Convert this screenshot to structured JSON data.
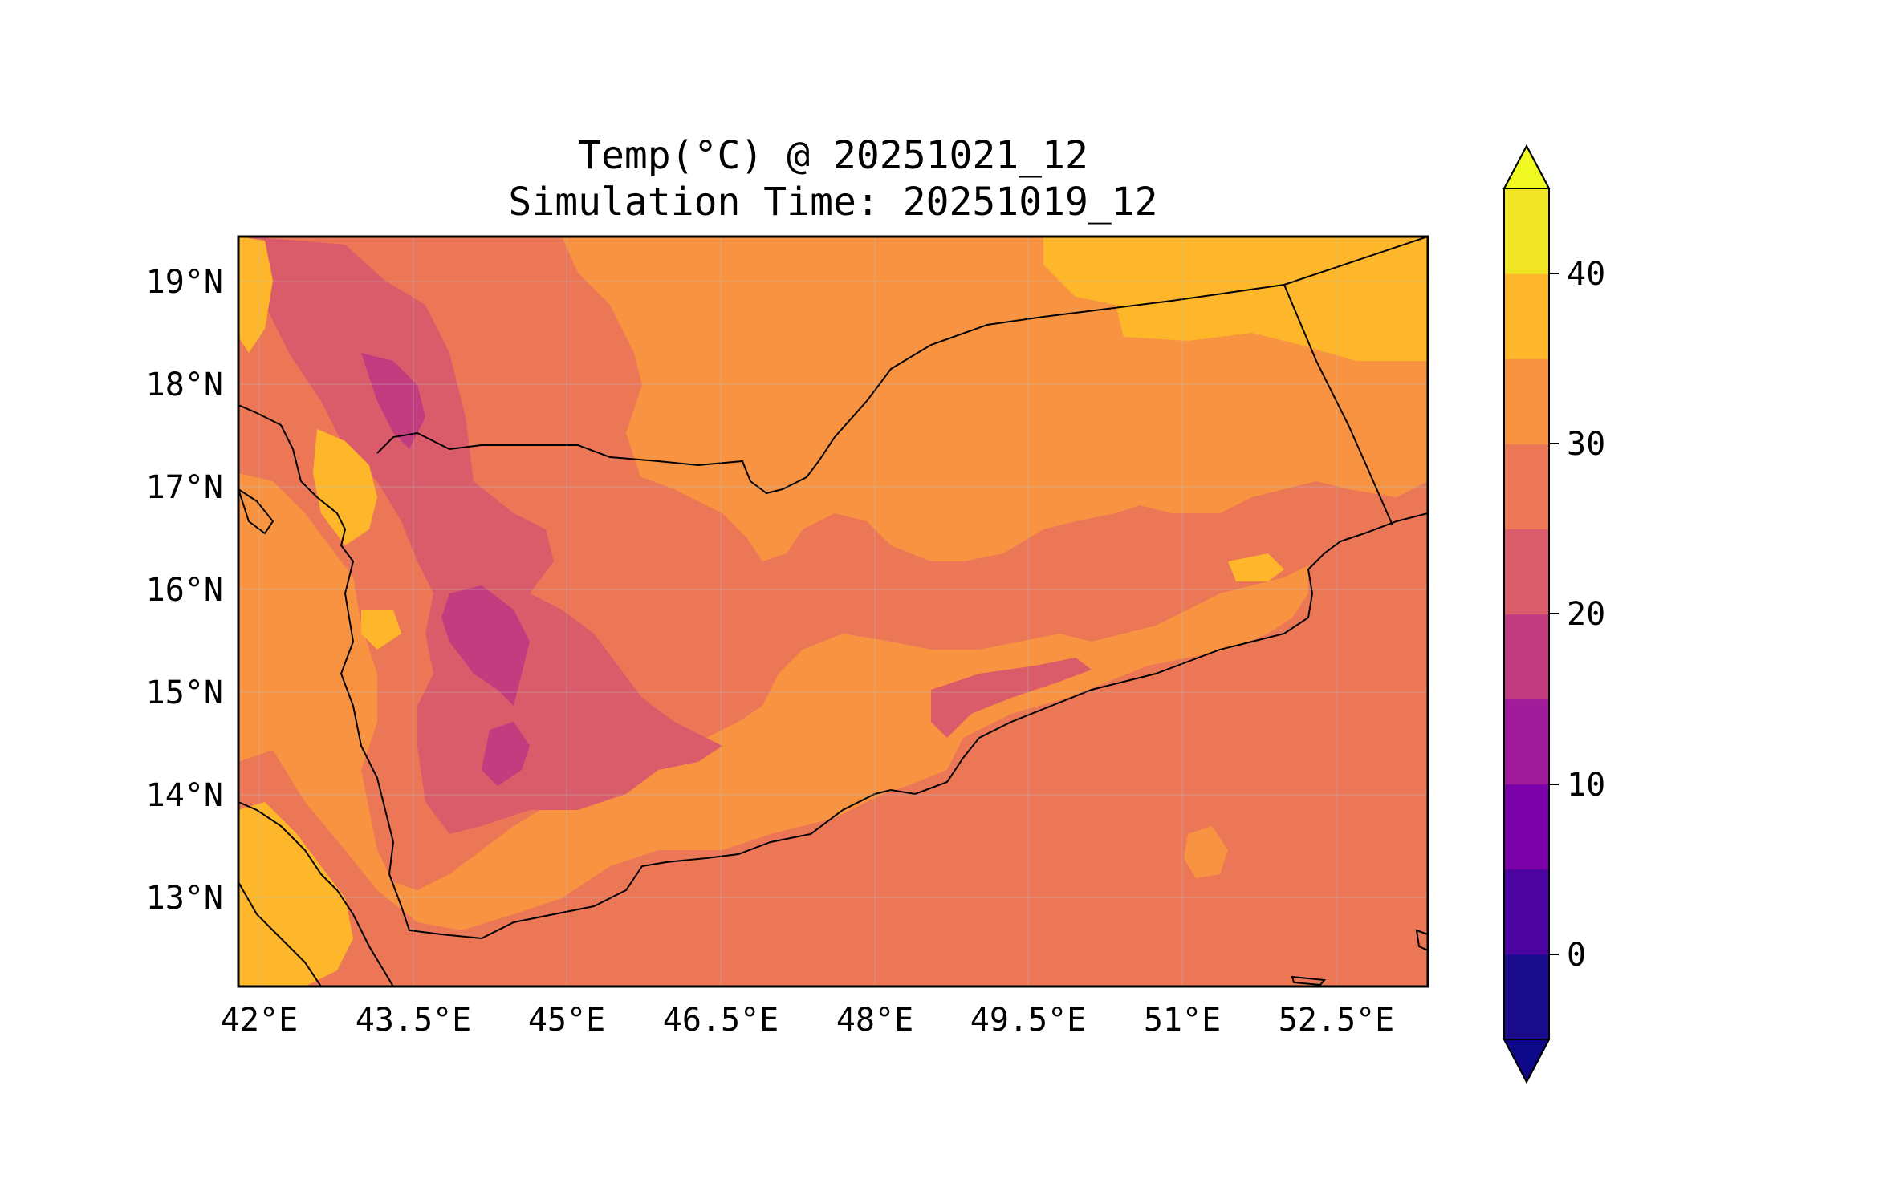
{
  "map": {
    "title_line1": "Temp(°C) @ 20251021_12",
    "title_line2": "Simulation Time: 20251019_12",
    "lon_ticks": [
      "42°E",
      "43.5°E",
      "45°E",
      "46.5°E",
      "48°E",
      "49.5°E",
      "51°E",
      "52.5°E"
    ],
    "lat_ticks": [
      "19°N",
      "18°N",
      "17°N",
      "16°N",
      "15°N",
      "14°N",
      "13°N"
    ],
    "extent_lon": [
      41.9,
      53.7
    ],
    "extent_lat": [
      12.1,
      19.4
    ]
  },
  "colorbar": {
    "ticks": [
      "0",
      "10",
      "20",
      "30",
      "40"
    ],
    "levels": [
      -5,
      0,
      5,
      10,
      15,
      20,
      25,
      30,
      35,
      40,
      45
    ],
    "colors": [
      "#1a0a8c",
      "#4b04a0",
      "#7a01a8",
      "#a11c9b",
      "#c23c80",
      "#da5b6a",
      "#ec7757",
      "#f89441",
      "#feb72a",
      "#f0e524"
    ],
    "under_color": "#0d0887",
    "over_color": "#f0f921",
    "extend": "both"
  },
  "colors": {
    "background": "#ffffff",
    "border": "#000000",
    "grid": "#bdbdbd"
  }
}
